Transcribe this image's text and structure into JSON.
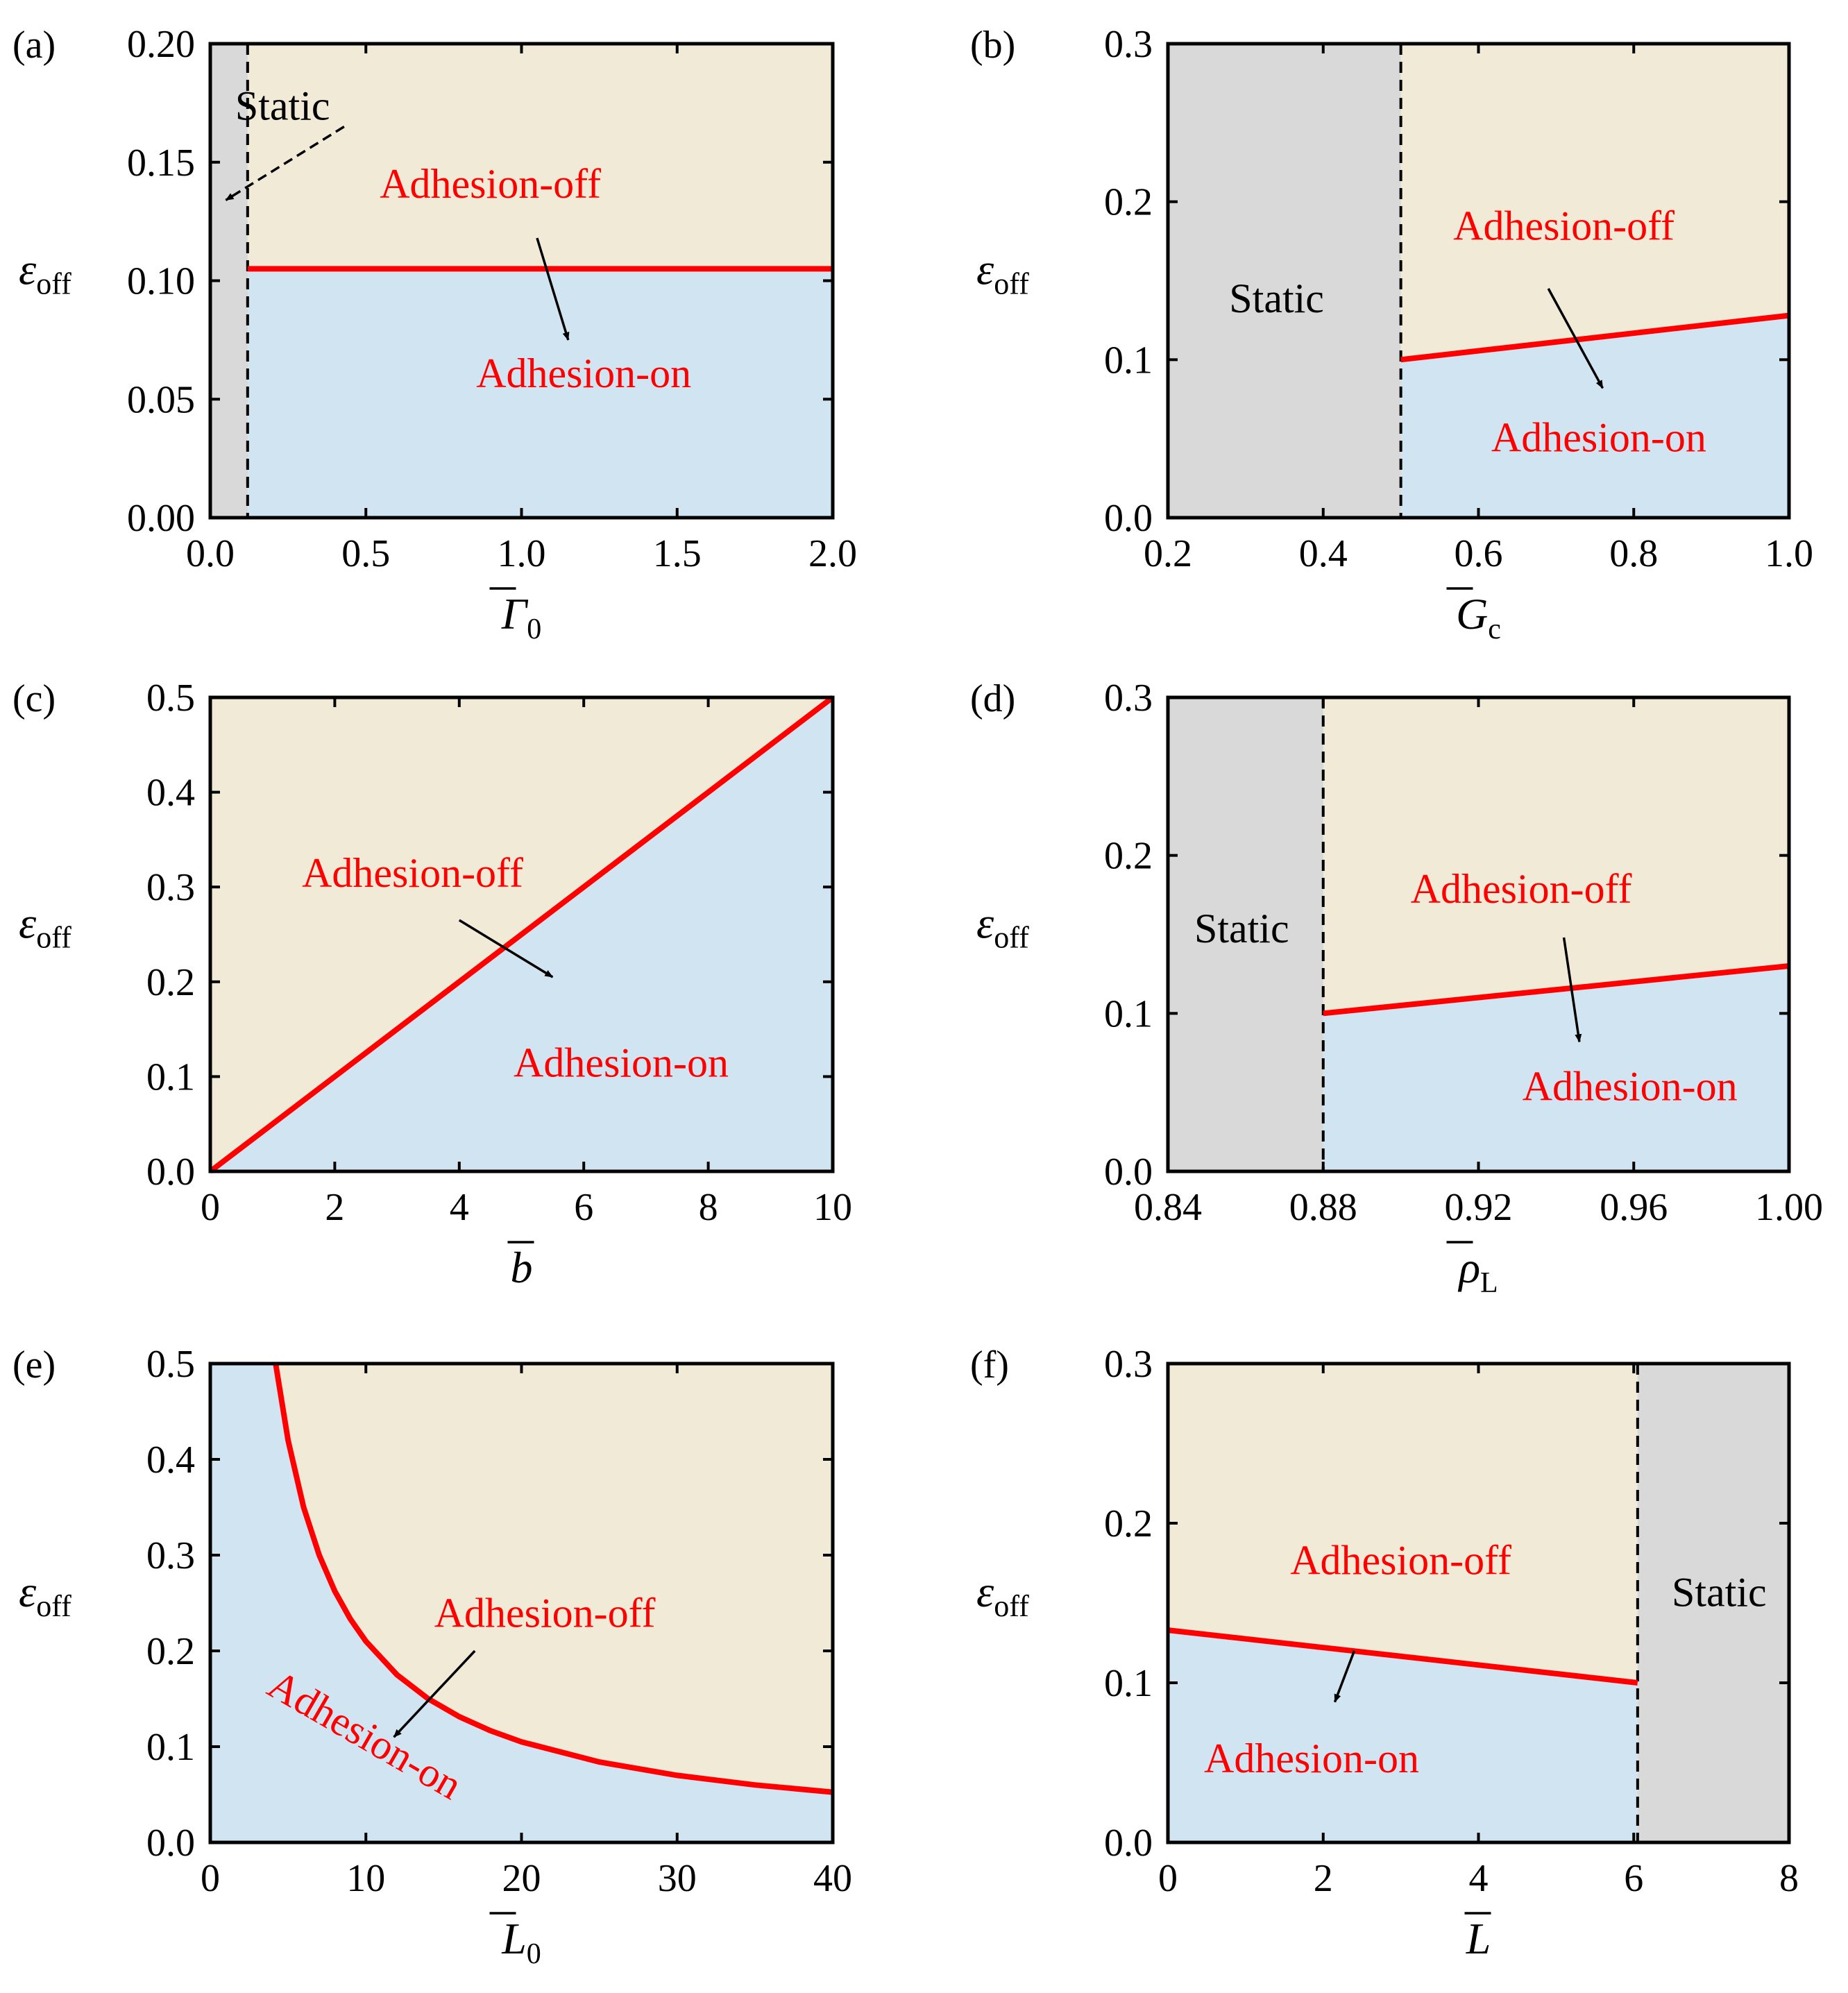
{
  "colors": {
    "static_region": "#d9d9d9",
    "off_region": "#f0ead6",
    "on_region": "#d0e4f2",
    "boundary": "#ff0000",
    "annotation": "#ff0000",
    "axis": "#000000"
  },
  "chart_data": [
    {
      "id": "a",
      "type": "area",
      "panel_label": "(a)",
      "xlabel": "Γ̄0",
      "xlabel_main": "Γ",
      "xlabel_sub": "0",
      "xlabel_italic": true,
      "ylabel": "εoff",
      "ylabel_main": "ε",
      "ylabel_sub": "off",
      "xlim": [
        0,
        2.0
      ],
      "ylim": [
        0,
        0.2
      ],
      "xticks": [
        0,
        0.5,
        1.0,
        1.5,
        2.0
      ],
      "xtick_labels": [
        "0.0",
        "0.5",
        "1.0",
        "1.5",
        "2.0"
      ],
      "yticks": [
        0,
        0.05,
        0.1,
        0.15,
        0.2
      ],
      "ytick_labels": [
        "0.00",
        "0.05",
        "0.10",
        "0.15",
        "0.20"
      ],
      "boundary": {
        "x": [
          0.12,
          2.0
        ],
        "y": [
          0.105,
          0.105
        ]
      },
      "static_range": [
        0,
        0.12
      ],
      "static_side": "left",
      "static_divider_x": 0.12,
      "regions": [
        {
          "name": "Static",
          "label": "Static",
          "x": 0.08,
          "y": 0.168,
          "color": "black",
          "anchor": "start"
        },
        {
          "name": "Adhesion-off",
          "label": "Adhesion-off",
          "x": 0.9,
          "y": 0.135,
          "color": "red",
          "anchor": "middle"
        },
        {
          "name": "Adhesion-on",
          "label": "Adhesion-on",
          "x": 1.2,
          "y": 0.055,
          "color": "red",
          "anchor": "middle"
        }
      ],
      "arrows": [
        {
          "from": [
            0.43,
            0.165
          ],
          "to": [
            0.05,
            0.134
          ],
          "dashed": true
        },
        {
          "from": [
            1.05,
            0.118
          ],
          "to": [
            1.15,
            0.075
          ],
          "dashed": false
        }
      ]
    },
    {
      "id": "b",
      "type": "area",
      "panel_label": "(b)",
      "xlabel": "Ḡc",
      "xlabel_main": "G",
      "xlabel_sub": "c",
      "xlabel_italic": true,
      "ylabel": "εoff",
      "ylabel_main": "ε",
      "ylabel_sub": "off",
      "xlim": [
        0.2,
        1.0
      ],
      "ylim": [
        0,
        0.3
      ],
      "xticks": [
        0.2,
        0.4,
        0.6,
        0.8,
        1.0
      ],
      "xtick_labels": [
        "0.2",
        "0.4",
        "0.6",
        "0.8",
        "1.0"
      ],
      "yticks": [
        0,
        0.1,
        0.2,
        0.3
      ],
      "ytick_labels": [
        "0.0",
        "0.1",
        "0.2",
        "0.3"
      ],
      "boundary": {
        "x": [
          0.5,
          1.0
        ],
        "y": [
          0.1,
          0.128
        ]
      },
      "static_range": [
        0.2,
        0.5
      ],
      "static_side": "left",
      "static_divider_x": 0.5,
      "regions": [
        {
          "name": "Static",
          "label": "Static",
          "x": 0.34,
          "y": 0.13,
          "color": "black",
          "anchor": "middle"
        },
        {
          "name": "Adhesion-off",
          "label": "Adhesion-off",
          "x": 0.71,
          "y": 0.176,
          "color": "red",
          "anchor": "middle"
        },
        {
          "name": "Adhesion-on",
          "label": "Adhesion-on",
          "x": 0.755,
          "y": 0.042,
          "color": "red",
          "anchor": "middle"
        }
      ],
      "arrows": [
        {
          "from": [
            0.69,
            0.145
          ],
          "to": [
            0.76,
            0.082
          ],
          "dashed": false
        }
      ]
    },
    {
      "id": "c",
      "type": "area",
      "panel_label": "(c)",
      "xlabel": "b̄",
      "xlabel_main": "b",
      "xlabel_sub": "",
      "xlabel_italic": true,
      "ylabel": "εoff",
      "ylabel_main": "ε",
      "ylabel_sub": "off",
      "xlim": [
        0,
        10
      ],
      "ylim": [
        0,
        0.5
      ],
      "xticks": [
        0,
        2,
        4,
        6,
        8,
        10
      ],
      "xtick_labels": [
        "0",
        "2",
        "4",
        "6",
        "8",
        "10"
      ],
      "yticks": [
        0,
        0.1,
        0.2,
        0.3,
        0.4,
        0.5
      ],
      "ytick_labels": [
        "0.0",
        "0.1",
        "0.2",
        "0.3",
        "0.4",
        "0.5"
      ],
      "boundary": {
        "x": [
          0,
          10
        ],
        "y": [
          0,
          0.5
        ]
      },
      "static_range": null,
      "static_side": "none",
      "static_divider_x": null,
      "regions": [
        {
          "name": "Adhesion-off",
          "label": "Adhesion-off",
          "x": 3.25,
          "y": 0.3,
          "color": "red",
          "anchor": "middle"
        },
        {
          "name": "Adhesion-on",
          "label": "Adhesion-on",
          "x": 6.6,
          "y": 0.1,
          "color": "red",
          "anchor": "middle"
        }
      ],
      "arrows": [
        {
          "from": [
            4.0,
            0.265
          ],
          "to": [
            5.5,
            0.205
          ],
          "dashed": false
        }
      ]
    },
    {
      "id": "d",
      "type": "area",
      "panel_label": "(d)",
      "xlabel": "ρ̄L",
      "xlabel_main": "ρ",
      "xlabel_sub": "L",
      "xlabel_italic": true,
      "ylabel": "εoff",
      "ylabel_main": "ε",
      "ylabel_sub": "off",
      "xlim": [
        0.84,
        1.0
      ],
      "ylim": [
        0,
        0.3
      ],
      "xticks": [
        0.84,
        0.88,
        0.92,
        0.96,
        1.0
      ],
      "xtick_labels": [
        "0.84",
        "0.88",
        "0.92",
        "0.96",
        "1.00"
      ],
      "yticks": [
        0,
        0.1,
        0.2,
        0.3
      ],
      "ytick_labels": [
        "0.0",
        "0.1",
        "0.2",
        "0.3"
      ],
      "boundary": {
        "x": [
          0.88,
          1.0
        ],
        "y": [
          0.1,
          0.13
        ]
      },
      "static_range": [
        0.84,
        0.88
      ],
      "static_side": "left",
      "static_divider_x": 0.88,
      "regions": [
        {
          "name": "Static",
          "label": "Static",
          "x": 0.859,
          "y": 0.145,
          "color": "black",
          "anchor": "middle"
        },
        {
          "name": "Adhesion-off",
          "label": "Adhesion-off",
          "x": 0.931,
          "y": 0.17,
          "color": "red",
          "anchor": "middle"
        },
        {
          "name": "Adhesion-on",
          "label": "Adhesion-on",
          "x": 0.959,
          "y": 0.045,
          "color": "red",
          "anchor": "middle"
        }
      ],
      "arrows": [
        {
          "from": [
            0.942,
            0.148
          ],
          "to": [
            0.946,
            0.082
          ],
          "dashed": false
        }
      ]
    },
    {
      "id": "e",
      "type": "area",
      "panel_label": "(e)",
      "xlabel": "L̄0",
      "xlabel_main": "L",
      "xlabel_sub": "0",
      "xlabel_italic": true,
      "ylabel": "εoff",
      "ylabel_main": "ε",
      "ylabel_sub": "off",
      "xlim": [
        0,
        40
      ],
      "ylim": [
        0,
        0.5
      ],
      "xticks": [
        0,
        10,
        20,
        30,
        40
      ],
      "xtick_labels": [
        "0",
        "10",
        "20",
        "30",
        "40"
      ],
      "yticks": [
        0,
        0.1,
        0.2,
        0.3,
        0.4,
        0.5
      ],
      "ytick_labels": [
        "0.0",
        "0.1",
        "0.2",
        "0.3",
        "0.4",
        "0.5"
      ],
      "boundary": {
        "x": [
          4.2,
          5,
          6,
          7,
          8,
          9,
          10,
          12,
          14,
          16,
          18,
          20,
          25,
          30,
          35,
          40
        ],
        "y": [
          0.5,
          0.42,
          0.35,
          0.3,
          0.2625,
          0.2333,
          0.21,
          0.175,
          0.15,
          0.1313,
          0.1167,
          0.105,
          0.084,
          0.07,
          0.06,
          0.0525
        ]
      },
      "static_range": null,
      "static_side": "none",
      "static_divider_x": null,
      "regions": [
        {
          "name": "Adhesion-off",
          "label": "Adhesion-off",
          "x": 21.5,
          "y": 0.225,
          "color": "red",
          "anchor": "middle"
        },
        {
          "name": "Adhesion-on",
          "label": "Adhesion-on",
          "x": 9.5,
          "y": 0.1,
          "color": "red",
          "anchor": "middle",
          "rotate": 30
        }
      ],
      "arrows": [
        {
          "from": [
            17.0,
            0.2
          ],
          "to": [
            11.8,
            0.11
          ],
          "dashed": false
        }
      ]
    },
    {
      "id": "f",
      "type": "area",
      "panel_label": "(f)",
      "xlabel": "L̄",
      "xlabel_main": "L",
      "xlabel_sub": "",
      "xlabel_italic": true,
      "ylabel": "εoff",
      "ylabel_main": "ε",
      "ylabel_sub": "off",
      "xlim": [
        0,
        8
      ],
      "ylim": [
        0,
        0.3
      ],
      "xticks": [
        0,
        2,
        4,
        6,
        8
      ],
      "xtick_labels": [
        "0",
        "2",
        "4",
        "6",
        "8"
      ],
      "yticks": [
        0,
        0.1,
        0.2,
        0.3
      ],
      "ytick_labels": [
        "0.0",
        "0.1",
        "0.2",
        "0.3"
      ],
      "boundary": {
        "x": [
          0,
          6.05
        ],
        "y": [
          0.133,
          0.1
        ]
      },
      "static_range": [
        6.05,
        8
      ],
      "static_side": "right",
      "static_divider_x": 6.05,
      "regions": [
        {
          "name": "Static",
          "label": "Static",
          "x": 7.1,
          "y": 0.148,
          "color": "black",
          "anchor": "middle"
        },
        {
          "name": "Adhesion-off",
          "label": "Adhesion-off",
          "x": 3.0,
          "y": 0.168,
          "color": "red",
          "anchor": "middle"
        },
        {
          "name": "Adhesion-on",
          "label": "Adhesion-on",
          "x": 1.85,
          "y": 0.044,
          "color": "red",
          "anchor": "middle"
        }
      ],
      "arrows": [
        {
          "from": [
            2.4,
            0.12
          ],
          "to": [
            2.15,
            0.088
          ],
          "dashed": false
        }
      ]
    }
  ]
}
